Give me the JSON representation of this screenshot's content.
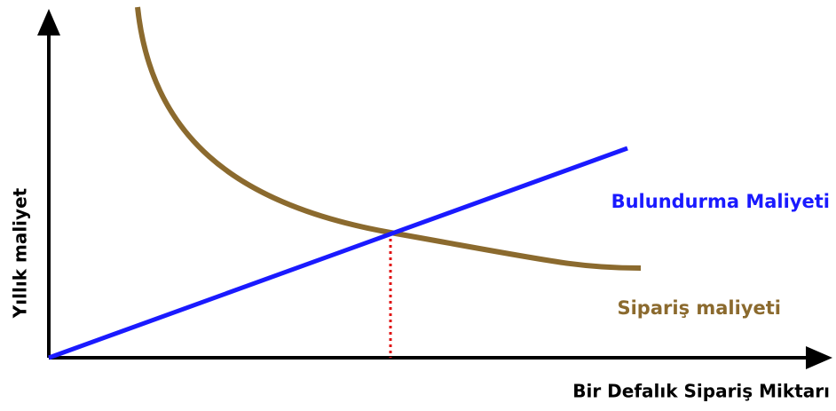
{
  "x_axis_label": "Bir Defalık Sipariş Miktarı",
  "y_axis_label": "Yıllık maliyet",
  "curves": [
    {
      "label": "Bulundurma Maliyeti",
      "color": "#1a1aff"
    },
    {
      "label": "Sipariş maliyeti",
      "color": "#8b6a2e"
    }
  ]
}
